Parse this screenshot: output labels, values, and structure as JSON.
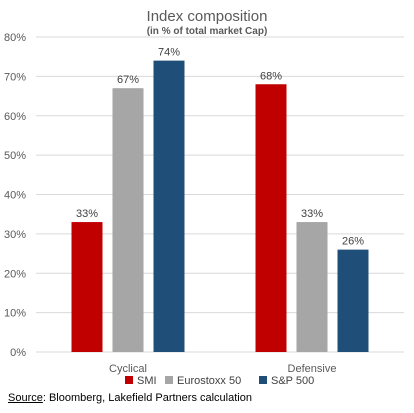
{
  "chart_data": {
    "type": "bar",
    "title": "Index composition",
    "subtitle": "(in % of total market Cap)",
    "categories": [
      "Cyclical",
      "Defensive"
    ],
    "series": [
      {
        "name": "SMI",
        "values": [
          33,
          68
        ],
        "labels": [
          "33%",
          "68%"
        ],
        "color": "#c00000"
      },
      {
        "name": "Eurostoxx 50",
        "values": [
          67,
          33
        ],
        "labels": [
          "67%",
          "33%"
        ],
        "color": "#a6a6a6"
      },
      {
        "name": "S&P 500",
        "values": [
          74,
          26
        ],
        "labels": [
          "74%",
          "26%"
        ],
        "color": "#1f4e79"
      }
    ],
    "ylim": [
      0,
      80
    ],
    "yticks": [
      0,
      10,
      20,
      30,
      40,
      50,
      60,
      70,
      80
    ],
    "ytick_labels": [
      "0%",
      "10%",
      "20%",
      "30%",
      "40%",
      "50%",
      "60%",
      "70%",
      "80%"
    ],
    "grid": true,
    "legend_position": "bottom"
  },
  "source": {
    "label": "Source",
    "text": ": Bloomberg, Lakefield Partners calculation"
  }
}
